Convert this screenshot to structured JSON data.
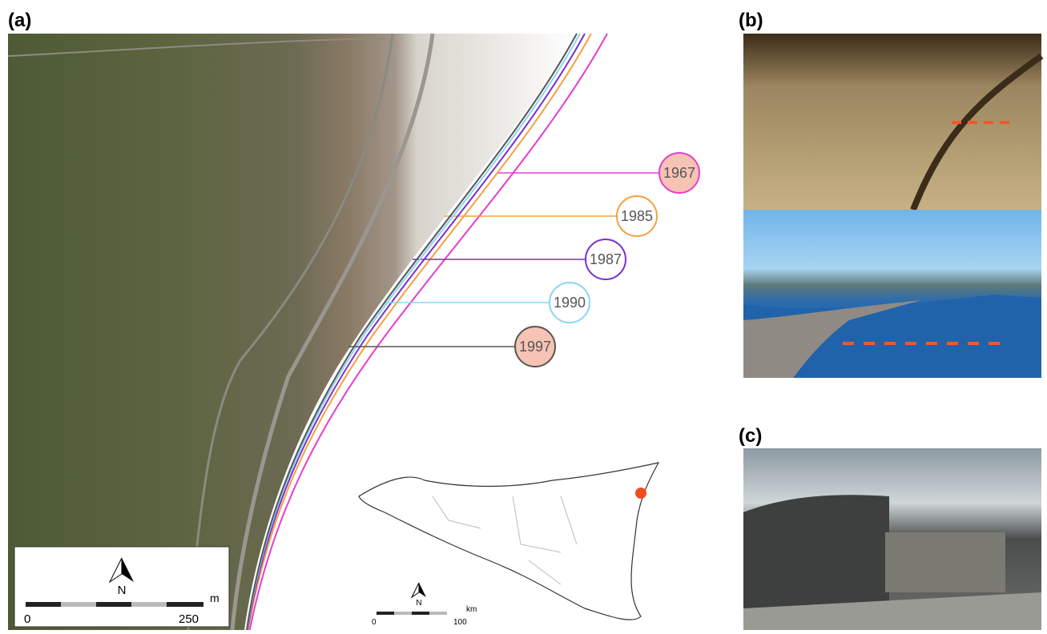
{
  "panels": {
    "a": {
      "label": "(a)"
    },
    "b": {
      "label": "(b)"
    },
    "c": {
      "label": "(c)"
    }
  },
  "shorelines": [
    {
      "year": "1967",
      "color": "#e83ccf",
      "fill": "#f7c3b4"
    },
    {
      "year": "1985",
      "color": "#f5a040",
      "fill": "#ffffff"
    },
    {
      "year": "1987",
      "color": "#7b2fd0",
      "fill": "#ffffff"
    },
    {
      "year": "1990",
      "color": "#8ad6f2",
      "fill": "#ffffff"
    },
    {
      "year": "1997",
      "color": "#555555",
      "fill": "#f7c3b4"
    }
  ],
  "map_scale": {
    "north": "N",
    "unit": "m",
    "start": "0",
    "end": "250"
  },
  "inset_scale": {
    "north": "N",
    "unit": "km",
    "start": "0",
    "end": "100"
  }
}
